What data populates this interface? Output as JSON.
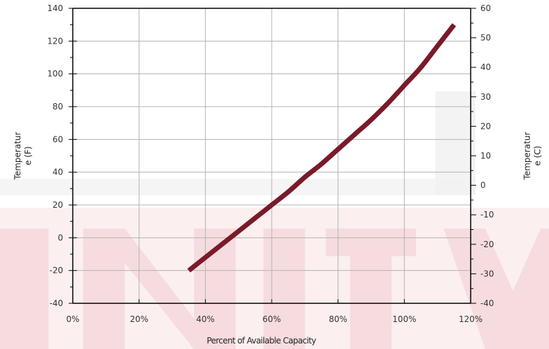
{
  "chart_data": {
    "type": "line",
    "xlabel": "Percent of Available Capacity",
    "ylabel_left": [
      "Temperatur",
      "e (F)"
    ],
    "ylabel_right": [
      "Temperatur",
      "e (C)"
    ],
    "xlim": [
      0,
      120
    ],
    "ylim_left": [
      -40,
      140
    ],
    "ylim_right": [
      -40,
      60
    ],
    "x_ticks": [
      "0%",
      "20%",
      "40%",
      "60%",
      "80%",
      "100%",
      "120%"
    ],
    "y_left_ticks": [
      "-40",
      "-20",
      "0",
      "20",
      "40",
      "60",
      "80",
      "100",
      "120",
      "140"
    ],
    "y_right_ticks": [
      "-40",
      "-30",
      "-20",
      "-10",
      "0",
      "10",
      "20",
      "30",
      "40",
      "50",
      "60"
    ],
    "grid": true,
    "series": [
      {
        "color": "#7a1a2a",
        "x": [
          35,
          40,
          45,
          50,
          55,
          60,
          65,
          70,
          75,
          80,
          85,
          90,
          95,
          100,
          105,
          110,
          115
        ],
        "y": [
          -20,
          -12,
          -4,
          4,
          12,
          20,
          28,
          37,
          45,
          54,
          63,
          72,
          82,
          93,
          104,
          117,
          130
        ]
      }
    ],
    "watermark_color": "#c8202a"
  }
}
